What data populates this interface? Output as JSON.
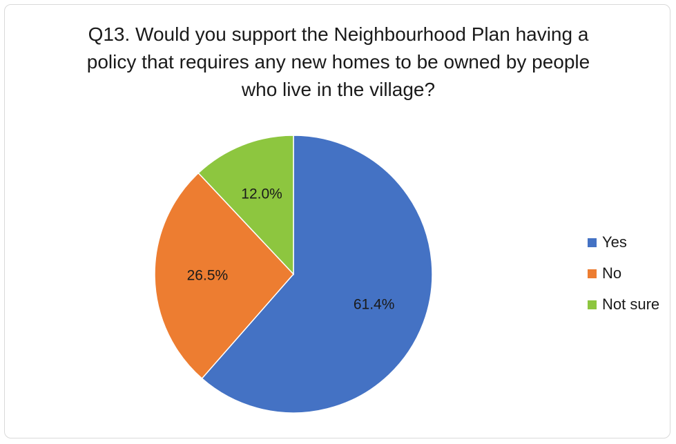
{
  "chart_data": {
    "type": "pie",
    "title_lines": [
      "Q13. Would you support the Neighbourhood Plan having a",
      "policy that requires any new homes to be owned by people",
      "who live in the village?"
    ],
    "slices": [
      {
        "label": "Yes",
        "value": 61.4,
        "display": "61.4%",
        "color": "#4472C4"
      },
      {
        "label": "No",
        "value": 26.5,
        "display": "26.5%",
        "color": "#ED7D31"
      },
      {
        "label": "Not sure",
        "value": 12.0,
        "display": "12.0%",
        "color": "#8DC63F"
      }
    ],
    "legend_placement": "right"
  }
}
